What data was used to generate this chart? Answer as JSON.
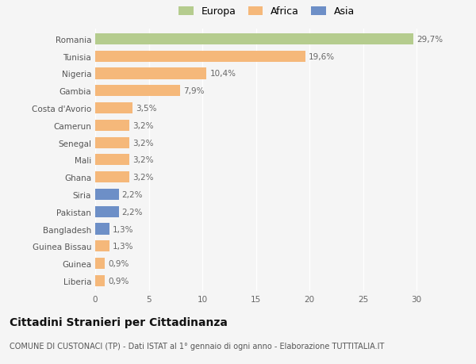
{
  "categories": [
    "Romania",
    "Tunisia",
    "Nigeria",
    "Gambia",
    "Costa d'Avorio",
    "Camerun",
    "Senegal",
    "Mali",
    "Ghana",
    "Siria",
    "Pakistan",
    "Bangladesh",
    "Guinea Bissau",
    "Guinea",
    "Liberia"
  ],
  "values": [
    29.7,
    19.6,
    10.4,
    7.9,
    3.5,
    3.2,
    3.2,
    3.2,
    3.2,
    2.2,
    2.2,
    1.3,
    1.3,
    0.9,
    0.9
  ],
  "labels": [
    "29,7%",
    "19,6%",
    "10,4%",
    "7,9%",
    "3,5%",
    "3,2%",
    "3,2%",
    "3,2%",
    "3,2%",
    "2,2%",
    "2,2%",
    "1,3%",
    "1,3%",
    "0,9%",
    "0,9%"
  ],
  "colors": [
    "#b5cc8e",
    "#f5b87a",
    "#f5b87a",
    "#f5b87a",
    "#f5b87a",
    "#f5b87a",
    "#f5b87a",
    "#f5b87a",
    "#f5b87a",
    "#6d8fc7",
    "#6d8fc7",
    "#6d8fc7",
    "#f5b87a",
    "#f5b87a",
    "#f5b87a"
  ],
  "legend_labels": [
    "Europa",
    "Africa",
    "Asia"
  ],
  "legend_colors": [
    "#b5cc8e",
    "#f5b87a",
    "#6d8fc7"
  ],
  "xlim": [
    0,
    32
  ],
  "xticks": [
    0,
    5,
    10,
    15,
    20,
    25,
    30
  ],
  "title": "Cittadini Stranieri per Cittadinanza",
  "subtitle": "COMUNE DI CUSTONACI (TP) - Dati ISTAT al 1° gennaio di ogni anno - Elaborazione TUTTITALIA.IT",
  "bg_color": "#f5f5f5",
  "label_fontsize": 7.5,
  "tick_fontsize": 7.5,
  "title_fontsize": 10,
  "subtitle_fontsize": 7
}
